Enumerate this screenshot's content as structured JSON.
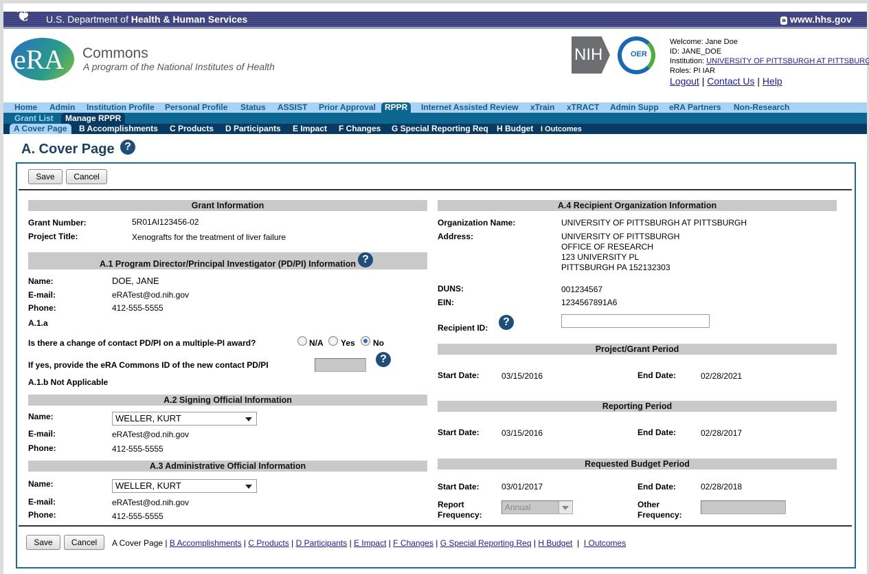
{
  "hhs": {
    "title_prefix": "U.S. Department of ",
    "title_bold": "Health & Human Services",
    "link": "www.hhs.gov"
  },
  "brand": {
    "logo": "eRA",
    "name": "Commons",
    "tagline": "A program of the National Institutes of Health",
    "nih": "NIH",
    "oer": "OER"
  },
  "user": {
    "welcome": "Welcome: Jane Doe",
    "id": "ID: JANE_DOE",
    "institution_label": "Institution: ",
    "institution": "UNIVERSITY OF PITTSBURGH AT PITTSBURGH",
    "roles": "Roles:  PI  IAR",
    "logout": "Logout",
    "contact": "Contact Us",
    "help": "Help",
    "sep": "|"
  },
  "nav": {
    "main": [
      "Home",
      "Admin",
      "Institution Profile",
      "Personal Profile",
      "Status",
      "ASSIST",
      "Prior Approval",
      "RPPR",
      "Internet Assisted Review",
      "xTrain",
      "xTRACT",
      "Admin Supp",
      "eRA Partners",
      "Non-Research"
    ],
    "active": "RPPR",
    "sub": [
      "Grant List",
      "Manage RPPR"
    ],
    "sections": [
      "A Cover Page",
      "B Accomplishments",
      "C Products",
      "D Participants",
      "E Impact",
      "F Changes",
      "G Special Reporting Req",
      "H Budget",
      "I Outcomes"
    ]
  },
  "page": {
    "title": "A. Cover Page",
    "save": "Save",
    "cancel": "Cancel"
  },
  "grant": {
    "header": "Grant Information",
    "number_label": "Grant Number:",
    "number": "5R01AI123456-02",
    "title_label": "Project Title:",
    "title": "Xenografts for the treatment of liver failure"
  },
  "a1": {
    "header": "A.1 Program Director/Principal Investigator (PD/PI) Information",
    "name_label": "Name:",
    "name": "DOE, JANE",
    "email_label": "E-mail:",
    "email": "eRATest@od.nih.gov",
    "phone_label": "Phone:",
    "phone": "412-555-5555",
    "a1a": "A.1.a",
    "question": "Is there a change of contact PD/PI on a multiple-PI award?",
    "options": [
      "N/A",
      "Yes",
      "No"
    ],
    "selected": "No",
    "ifyes": "If yes, provide the eRA Commons ID of the new contact PD/PI",
    "a1b": "A.1.b Not Applicable"
  },
  "a2": {
    "header": "A.2 Signing Official Information",
    "name_label": "Name:",
    "name": "WELLER, KURT",
    "email_label": "E-mail:",
    "email": "eRATest@od.nih.gov",
    "phone_label": "Phone:",
    "phone": "412-555-5555"
  },
  "a3": {
    "header": "A.3 Administrative Official Information",
    "name_label": "Name:",
    "name": "WELLER, KURT",
    "email_label": "E-mail:",
    "email": "eRATest@od.nih.gov",
    "phone_label": "Phone:",
    "phone": "412-555-5555"
  },
  "a4": {
    "header": "A.4 Recipient Organization Information",
    "org_label": "Organization Name:",
    "org": "UNIVERSITY OF PITTSBURGH AT PITTSBURGH",
    "address_label": "Address:",
    "address": [
      "UNIVERSITY OF PITTSBURGH",
      "OFFICE OF RESEARCH",
      "123 UNIVERSITY PL",
      "PITTSBURGH PA 152132303"
    ],
    "duns_label": "DUNS:",
    "duns": "001234567",
    "ein_label": "EIN:",
    "ein": "1234567891A6",
    "rid_label": "Recipient ID:",
    "rid": ""
  },
  "project_period": {
    "header": "Project/Grant Period",
    "start_label": "Start Date:",
    "start": "03/15/2016",
    "end_label": "End Date:",
    "end": "02/28/2021"
  },
  "reporting_period": {
    "header": "Reporting Period",
    "start_label": "Start Date:",
    "start": "03/15/2016",
    "end_label": "End Date:",
    "end": "02/28/2017"
  },
  "budget_period": {
    "header": "Requested Budget Period",
    "start_label": "Start Date:",
    "start": "03/01/2017",
    "end_label": "End Date:",
    "end": "02/28/2018",
    "freq_label1": "Report",
    "freq_label2": "Frequency:",
    "freq": "Annual",
    "other_label1": "Other",
    "other_label2": "Frequency:",
    "other": ""
  },
  "footer": {
    "current": "A Cover Page",
    "sep": "|"
  }
}
